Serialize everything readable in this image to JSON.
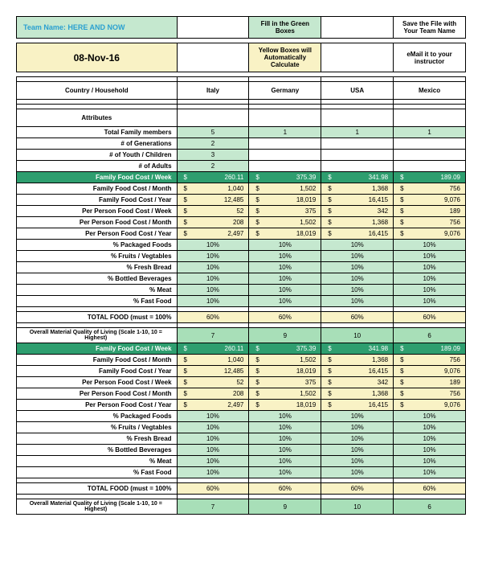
{
  "header": {
    "team_label": "Team Name: HERE AND NOW",
    "fill_green": "Fill in the Green Boxes",
    "save_file": "Save the File with Your Team Name",
    "date": "08-Nov-16",
    "yellow_calc": "Yellow Boxes will Automatically Calculate",
    "email_instr": "eMail it to your instructor",
    "country_hdr": "Country / Household",
    "countries": [
      "Italy",
      "Germany",
      "USA",
      "Mexico"
    ],
    "attributes": "Attributes"
  },
  "attr_rows": [
    {
      "label": "Total Family members",
      "v": [
        "5",
        "1",
        "1",
        "1"
      ],
      "fill": "all"
    },
    {
      "label": "# of Generations",
      "v": [
        "2",
        "",
        "",
        ""
      ],
      "fill": "first"
    },
    {
      "label": "# of Youth / Children",
      "v": [
        "3",
        "",
        "",
        ""
      ],
      "fill": "first"
    },
    {
      "label": "# of Adults",
      "v": [
        "2",
        "",
        "",
        ""
      ],
      "fill": "first"
    }
  ],
  "cost_header": {
    "label": "Family Food Cost / Week",
    "v": [
      "260.11",
      "375.39",
      "341.98",
      "189.09"
    ]
  },
  "cost_rows": [
    {
      "label": "Family Food Cost / Month",
      "v": [
        "1,040",
        "1,502",
        "1,368",
        "756"
      ]
    },
    {
      "label": "Family Food Cost / Year",
      "v": [
        "12,485",
        "18,019",
        "16,415",
        "9,076"
      ]
    },
    {
      "label": "Per Person  Food Cost / Week",
      "v": [
        "52",
        "375",
        "342",
        "189"
      ]
    },
    {
      "label": "Per Person  Food Cost / Month",
      "v": [
        "208",
        "1,502",
        "1,368",
        "756"
      ]
    },
    {
      "label": "Per Person  Food Cost / Year",
      "v": [
        "2,497",
        "18,019",
        "16,415",
        "9,076"
      ]
    }
  ],
  "pct_rows": [
    "% Packaged Foods",
    "% Fruits / Vegtables",
    "% Fresh Bread",
    "% Bottled Beverages",
    "% Meat",
    "% Fast Food"
  ],
  "pct_val": "10%",
  "total_food": {
    "label": "TOTAL FOOD (must = 100%",
    "v": "60%"
  },
  "quality": {
    "label": "Overall Material Quality of Living (Scale 1-10, 10 = Highest)",
    "v": [
      "7",
      "9",
      "10",
      "6"
    ]
  },
  "colors": {
    "green_light": "#c5e8cf",
    "green_mid": "#a8dfb8",
    "green_dark": "#2e9e6f",
    "cream": "#f9f2c5"
  }
}
